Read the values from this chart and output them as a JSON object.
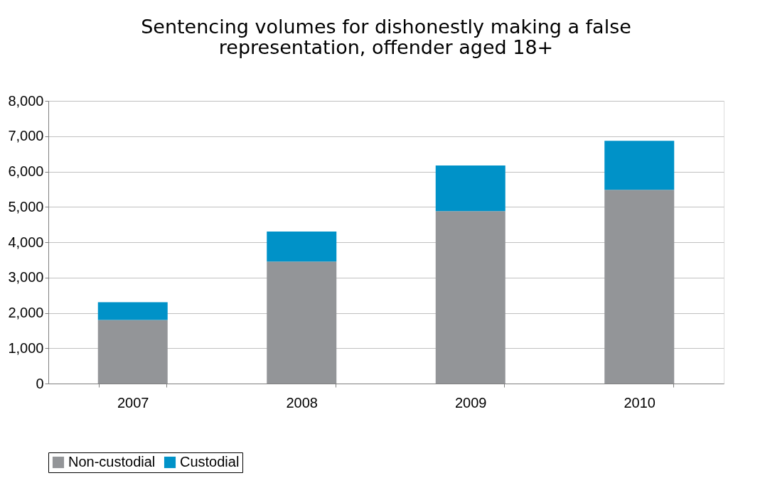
{
  "chart_data": {
    "type": "bar",
    "stacked": true,
    "title": [
      "Sentencing volumes for dishonestly making a false",
      "representation, offender aged 18+"
    ],
    "categories": [
      "2007",
      "2008",
      "2009",
      "2010"
    ],
    "series": [
      {
        "name": "Non-custodial",
        "color": "#939598",
        "values": [
          1800,
          3450,
          4880,
          5480
        ]
      },
      {
        "name": "Custodial",
        "color": "#0092c8",
        "values": [
          500,
          850,
          1290,
          1390
        ]
      }
    ],
    "ylim": [
      0,
      8000
    ],
    "yticks": [
      {
        "value": 0,
        "label": "0"
      },
      {
        "value": 1000,
        "label": "1,000"
      },
      {
        "value": 2000,
        "label": "2,000"
      },
      {
        "value": 3000,
        "label": "3,000"
      },
      {
        "value": 4000,
        "label": "4,000"
      },
      {
        "value": 5000,
        "label": "5,000"
      },
      {
        "value": 6000,
        "label": "6,000"
      },
      {
        "value": 7000,
        "label": "7,000"
      },
      {
        "value": 8000,
        "label": "8,000"
      }
    ],
    "grid": "y",
    "legend": "bottom"
  }
}
